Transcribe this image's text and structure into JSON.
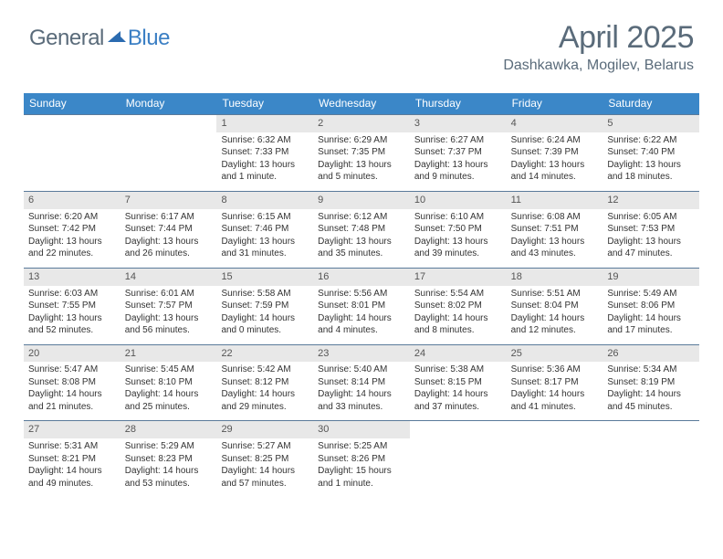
{
  "logo": {
    "text_general": "General",
    "text_blue": "Blue",
    "icon_color": "#2b6bb0"
  },
  "header": {
    "month_title": "April 2025",
    "location": "Dashkawka, Mogilev, Belarus"
  },
  "colors": {
    "header_bar": "#3b87c8",
    "header_text": "#ffffff",
    "day_number_bg": "#e8e8e8",
    "border": "#5a7a9a",
    "body_text": "#333333",
    "title_text": "#5a6b7a"
  },
  "day_labels": [
    "Sunday",
    "Monday",
    "Tuesday",
    "Wednesday",
    "Thursday",
    "Friday",
    "Saturday"
  ],
  "weeks": [
    [
      null,
      null,
      {
        "n": "1",
        "sr": "6:32 AM",
        "ss": "7:33 PM",
        "dl": "13 hours and 1 minute."
      },
      {
        "n": "2",
        "sr": "6:29 AM",
        "ss": "7:35 PM",
        "dl": "13 hours and 5 minutes."
      },
      {
        "n": "3",
        "sr": "6:27 AM",
        "ss": "7:37 PM",
        "dl": "13 hours and 9 minutes."
      },
      {
        "n": "4",
        "sr": "6:24 AM",
        "ss": "7:39 PM",
        "dl": "13 hours and 14 minutes."
      },
      {
        "n": "5",
        "sr": "6:22 AM",
        "ss": "7:40 PM",
        "dl": "13 hours and 18 minutes."
      }
    ],
    [
      {
        "n": "6",
        "sr": "6:20 AM",
        "ss": "7:42 PM",
        "dl": "13 hours and 22 minutes."
      },
      {
        "n": "7",
        "sr": "6:17 AM",
        "ss": "7:44 PM",
        "dl": "13 hours and 26 minutes."
      },
      {
        "n": "8",
        "sr": "6:15 AM",
        "ss": "7:46 PM",
        "dl": "13 hours and 31 minutes."
      },
      {
        "n": "9",
        "sr": "6:12 AM",
        "ss": "7:48 PM",
        "dl": "13 hours and 35 minutes."
      },
      {
        "n": "10",
        "sr": "6:10 AM",
        "ss": "7:50 PM",
        "dl": "13 hours and 39 minutes."
      },
      {
        "n": "11",
        "sr": "6:08 AM",
        "ss": "7:51 PM",
        "dl": "13 hours and 43 minutes."
      },
      {
        "n": "12",
        "sr": "6:05 AM",
        "ss": "7:53 PM",
        "dl": "13 hours and 47 minutes."
      }
    ],
    [
      {
        "n": "13",
        "sr": "6:03 AM",
        "ss": "7:55 PM",
        "dl": "13 hours and 52 minutes."
      },
      {
        "n": "14",
        "sr": "6:01 AM",
        "ss": "7:57 PM",
        "dl": "13 hours and 56 minutes."
      },
      {
        "n": "15",
        "sr": "5:58 AM",
        "ss": "7:59 PM",
        "dl": "14 hours and 0 minutes."
      },
      {
        "n": "16",
        "sr": "5:56 AM",
        "ss": "8:01 PM",
        "dl": "14 hours and 4 minutes."
      },
      {
        "n": "17",
        "sr": "5:54 AM",
        "ss": "8:02 PM",
        "dl": "14 hours and 8 minutes."
      },
      {
        "n": "18",
        "sr": "5:51 AM",
        "ss": "8:04 PM",
        "dl": "14 hours and 12 minutes."
      },
      {
        "n": "19",
        "sr": "5:49 AM",
        "ss": "8:06 PM",
        "dl": "14 hours and 17 minutes."
      }
    ],
    [
      {
        "n": "20",
        "sr": "5:47 AM",
        "ss": "8:08 PM",
        "dl": "14 hours and 21 minutes."
      },
      {
        "n": "21",
        "sr": "5:45 AM",
        "ss": "8:10 PM",
        "dl": "14 hours and 25 minutes."
      },
      {
        "n": "22",
        "sr": "5:42 AM",
        "ss": "8:12 PM",
        "dl": "14 hours and 29 minutes."
      },
      {
        "n": "23",
        "sr": "5:40 AM",
        "ss": "8:14 PM",
        "dl": "14 hours and 33 minutes."
      },
      {
        "n": "24",
        "sr": "5:38 AM",
        "ss": "8:15 PM",
        "dl": "14 hours and 37 minutes."
      },
      {
        "n": "25",
        "sr": "5:36 AM",
        "ss": "8:17 PM",
        "dl": "14 hours and 41 minutes."
      },
      {
        "n": "26",
        "sr": "5:34 AM",
        "ss": "8:19 PM",
        "dl": "14 hours and 45 minutes."
      }
    ],
    [
      {
        "n": "27",
        "sr": "5:31 AM",
        "ss": "8:21 PM",
        "dl": "14 hours and 49 minutes."
      },
      {
        "n": "28",
        "sr": "5:29 AM",
        "ss": "8:23 PM",
        "dl": "14 hours and 53 minutes."
      },
      {
        "n": "29",
        "sr": "5:27 AM",
        "ss": "8:25 PM",
        "dl": "14 hours and 57 minutes."
      },
      {
        "n": "30",
        "sr": "5:25 AM",
        "ss": "8:26 PM",
        "dl": "15 hours and 1 minute."
      },
      null,
      null,
      null
    ]
  ],
  "labels": {
    "sunrise": "Sunrise:",
    "sunset": "Sunset:",
    "daylight": "Daylight:"
  }
}
